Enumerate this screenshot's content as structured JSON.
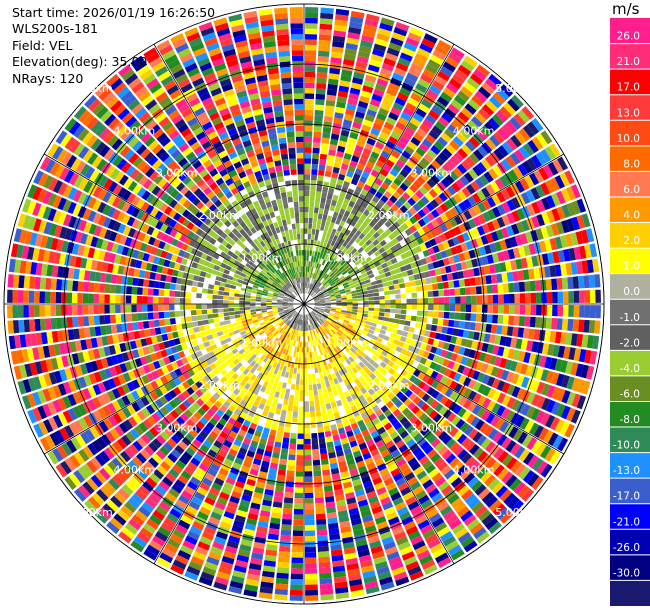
{
  "header": {
    "start_time": "Start time: 2026/01/19 16:26:50",
    "instrument": "WLS200s-181",
    "field": "Field: VEL",
    "elevation": "Elevation(deg): 35.00",
    "nrays": "NRays: 120"
  },
  "range_ring_labels": [
    "1.00km",
    "2.00km",
    "3.00km",
    "4.00km",
    "5.00km"
  ],
  "colorbar": {
    "unit": "m/s",
    "ticks": [
      "26.0",
      "21.0",
      "17.0",
      "13.0",
      "10.0",
      "8.0",
      "6.0",
      "4.0",
      "2.0",
      "1.0",
      "0.0",
      "-1.0",
      "-2.0",
      "-4.0",
      "-6.0",
      "-8.0",
      "-10.0",
      "-13.0",
      "-17.0",
      "-21.0",
      "-26.0",
      "-30.0"
    ],
    "colors": [
      "#ff1e8c",
      "#ff2c7a",
      "#ff0000",
      "#ff3a3a",
      "#ff4a14",
      "#ff6a00",
      "#ff7a50",
      "#ff9900",
      "#ffd000",
      "#ffff00",
      "#b0b0a0",
      "#707070",
      "#606060",
      "#9acd32",
      "#6b8e23",
      "#228b22",
      "#2e8b57",
      "#1e90ff",
      "#3a5fcd",
      "#0000ff",
      "#0000b0",
      "#000080",
      "#191970"
    ]
  }
}
